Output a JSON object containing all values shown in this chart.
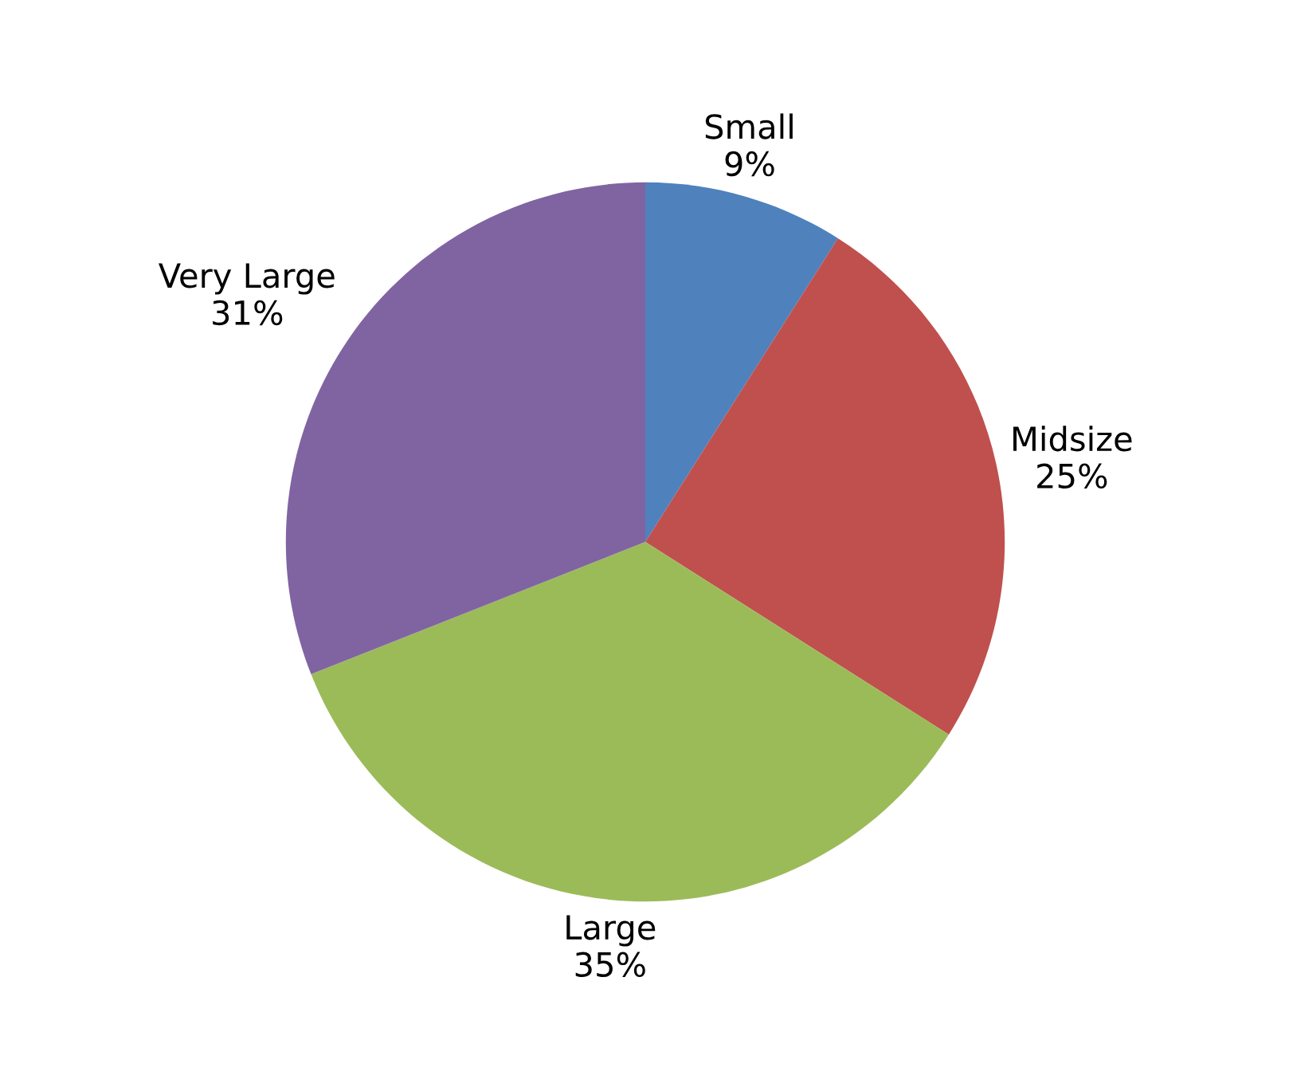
{
  "chart_data": {
    "type": "pie",
    "categories": [
      "Small",
      "Midsize",
      "Large",
      "Very Large"
    ],
    "values": [
      9,
      25,
      35,
      31
    ],
    "value_labels": [
      "9%",
      "25%",
      "35%",
      "31%"
    ],
    "colors": [
      "#4f81bd",
      "#c0504d",
      "#9bbb59",
      "#8064a2"
    ],
    "legend": false
  }
}
